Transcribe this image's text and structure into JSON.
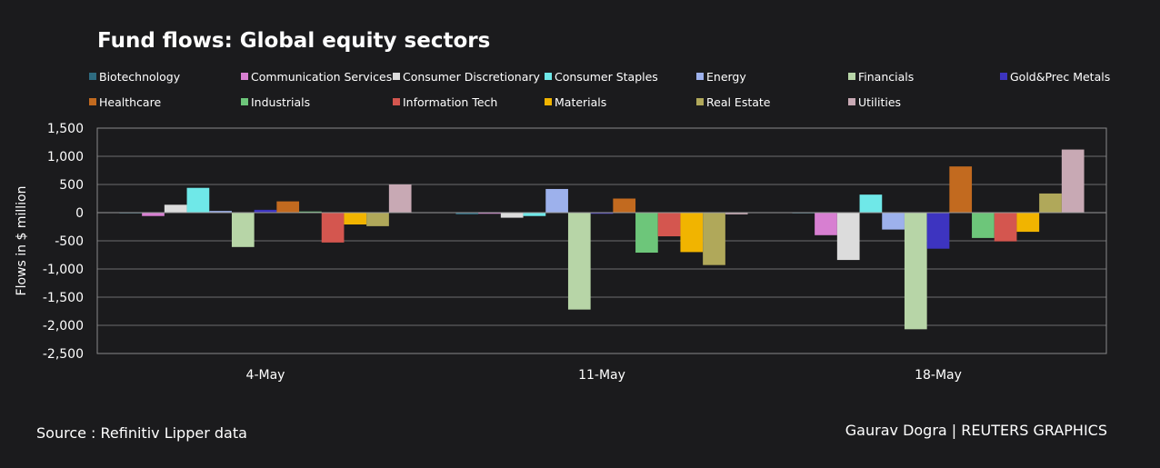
{
  "chart_data": {
    "type": "bar",
    "title": "Fund flows: Global equity sectors",
    "xlabel": "",
    "ylabel": "Flows in $ million",
    "ylim": [
      -2500,
      1500
    ],
    "yticks": [
      -2500,
      -2000,
      -1500,
      -1000,
      -500,
      0,
      500,
      1000,
      1500
    ],
    "ytick_labels": [
      "-2,500",
      "-2,000",
      "-1,500",
      "-1,000",
      "-500",
      "0",
      "500",
      "1,000",
      "1,500"
    ],
    "grid": true,
    "legend_position": "top",
    "categories": [
      "4-May",
      "11-May",
      "18-May"
    ],
    "series": [
      {
        "name": "Biotechnology",
        "color": "#2e6b80",
        "values": [
          -10,
          -30,
          -10
        ]
      },
      {
        "name": "Communication Services",
        "color": "#d77fd1",
        "values": [
          -60,
          -20,
          -400
        ]
      },
      {
        "name": "Consumer Discretionary",
        "color": "#dcdcdc",
        "values": [
          140,
          -90,
          -840
        ]
      },
      {
        "name": "Consumer Staples",
        "color": "#6fe8e8",
        "values": [
          440,
          -60,
          320
        ]
      },
      {
        "name": "Energy",
        "color": "#9db1ec",
        "values": [
          30,
          420,
          -300
        ]
      },
      {
        "name": "Financials",
        "color": "#b7d5a7",
        "values": [
          -610,
          -1720,
          -2070
        ]
      },
      {
        "name": "Gold&Prec Metals",
        "color": "#3d34c0",
        "values": [
          50,
          -20,
          -640
        ]
      },
      {
        "name": "Healthcare",
        "color": "#c26a1f",
        "values": [
          200,
          250,
          820
        ]
      },
      {
        "name": "Industrials",
        "color": "#6dc67a",
        "values": [
          20,
          -710,
          -450
        ]
      },
      {
        "name": "Information Tech",
        "color": "#d4564f",
        "values": [
          -530,
          -420,
          -510
        ]
      },
      {
        "name": "Materials",
        "color": "#f1b400",
        "values": [
          -210,
          -700,
          -340
        ]
      },
      {
        "name": "Real Estate",
        "color": "#b0a85a",
        "values": [
          -240,
          -930,
          340
        ]
      },
      {
        "name": "Utilities",
        "color": "#c8a9b4",
        "values": [
          500,
          -30,
          1120
        ]
      }
    ]
  },
  "footer": {
    "source": "Source : Refinitiv Lipper data",
    "credit": "Gaurav Dogra | REUTERS GRAPHICS"
  }
}
